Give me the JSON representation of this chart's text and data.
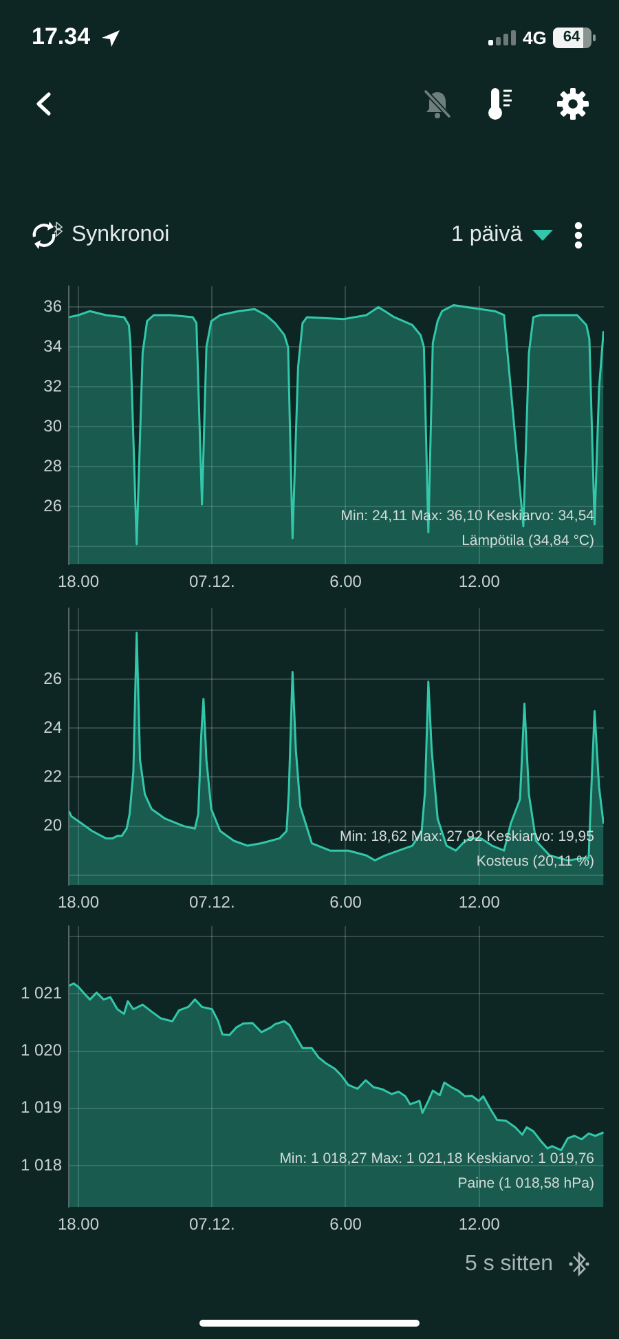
{
  "chart_data": [
    {
      "type": "other",
      "annotations": [
        "17.34",
        "4G",
        "64",
        "Synkronoi",
        "1 päivä"
      ]
    },
    {
      "type": "area",
      "color": "#33c7aa",
      "xlim": [
        "--12-06T17:34",
        "--12-07T17:36"
      ],
      "xticks": [
        {
          "value": "--12-06T18:00",
          "label": "18.00"
        },
        {
          "value": "--12-07T00:00",
          "label": "07.12."
        },
        {
          "value": "--12-07T06:00",
          "label": "6.00"
        },
        {
          "value": "--12-07T12:00",
          "label": "12.00"
        }
      ],
      "ylim": [
        23.1,
        37.05
      ],
      "yticks": [
        {
          "value": 24,
          "label": null
        },
        26,
        28,
        30,
        32,
        34,
        36
      ],
      "grid": true,
      "x": [
        "--12-06T17:35",
        "--12-06T18:00",
        "--12-06T18:31",
        "--12-06T19:14",
        "--12-06T20:03",
        "--12-06T20:16",
        "--12-06T20:20",
        "--12-06T20:37",
        "--12-06T20:53",
        "--12-06T21:05",
        "--12-06T21:23",
        "--12-06T22:07",
        "--12-06T23:08",
        "--12-06T23:18",
        "--12-06T23:33",
        "--12-06T23:45",
        "--12-06T23:58",
        "--12-07T00:22",
        "--12-07T01:11",
        "--12-07T01:55",
        "--12-07T02:25",
        "--12-07T02:50",
        "--12-07T03:15",
        "--12-07T03:25",
        "--12-07T03:37",
        "--12-07T03:52",
        "--12-07T04:04",
        "--12-07T04:16",
        "--12-07T05:55",
        "--12-07T06:56",
        "--12-07T07:28",
        "--12-07T07:46",
        "--12-07T08:11",
        "--12-07T09:00",
        "--12-07T09:22",
        "--12-07T09:31",
        "--12-07T09:43",
        "--12-07T09:55",
        "--12-07T10:08",
        "--12-07T10:20",
        "--12-07T10:51",
        "--12-07T11:28",
        "--12-07T12:42",
        "--12-07T13:07",
        "--12-07T13:59",
        "--12-07T14:14",
        "--12-07T14:26",
        "--12-07T14:45",
        "--12-07T16:24",
        "--12-07T16:49",
        "--12-07T16:57",
        "--12-07T17:11",
        "--12-07T17:23",
        "--12-07T17:35"
      ],
      "values": [
        35.5,
        35.6,
        35.8,
        35.6,
        35.5,
        35.1,
        34.2,
        24.1,
        33.7,
        35.3,
        35.6,
        35.6,
        35.5,
        35.2,
        26.1,
        34.0,
        35.3,
        35.6,
        35.8,
        35.9,
        35.6,
        35.2,
        34.6,
        34.0,
        24.4,
        33.0,
        35.2,
        35.5,
        35.4,
        35.6,
        36.0,
        35.8,
        35.5,
        35.1,
        34.6,
        34.0,
        24.7,
        34.2,
        35.3,
        35.8,
        36.1,
        36.0,
        35.8,
        35.6,
        25.0,
        33.7,
        35.5,
        35.6,
        35.6,
        35.1,
        34.4,
        25.1,
        31.9,
        34.8
      ],
      "annotations": [
        "Min: 24,11 Max: 36,10 Keskiarvo: 34,54",
        "Lämpötila (34,84 °C)"
      ]
    },
    {
      "type": "area",
      "color": "#33c7aa",
      "xlim": [
        "--12-06T17:34",
        "--12-07T17:36"
      ],
      "xticks": [
        {
          "value": "--12-06T18:00",
          "label": "18.00"
        },
        {
          "value": "--12-07T00:00",
          "label": "07.12."
        },
        {
          "value": "--12-07T06:00",
          "label": "6.00"
        },
        {
          "value": "--12-07T12:00",
          "label": "12.00"
        }
      ],
      "ylim": [
        17.6,
        28.9
      ],
      "yticks": [
        {
          "value": 18,
          "label": null
        },
        20,
        22,
        24,
        26,
        {
          "value": 28,
          "label": null
        }
      ],
      "grid": true,
      "x": [
        "--12-06T17:35",
        "--12-06T17:41",
        "--12-06T18:00",
        "--12-06T18:37",
        "--12-06T19:14",
        "--12-06T19:32",
        "--12-06T19:45",
        "--12-06T19:57",
        "--12-06T20:10",
        "--12-06T20:18",
        "--12-06T20:28",
        "--12-06T20:37",
        "--12-06T20:46",
        "--12-06T20:59",
        "--12-06T21:17",
        "--12-06T21:54",
        "--12-06T22:44",
        "--12-06T23:14",
        "--12-06T23:23",
        "--12-06T23:31",
        "--12-06T23:37",
        "--12-06T23:45",
        "--12-06T23:58",
        "--12-07T00:22",
        "--12-07T00:59",
        "--12-07T01:36",
        "--12-07T02:13",
        "--12-07T03:02",
        "--12-07T03:21",
        "--12-07T03:27",
        "--12-07T03:37",
        "--12-07T03:46",
        "--12-07T03:58",
        "--12-07T04:29",
        "--12-07T05:18",
        "--12-07T06:07",
        "--12-07T06:56",
        "--12-07T07:19",
        "--12-07T07:46",
        "--12-07T08:23",
        "--12-07T09:00",
        "--12-07T09:25",
        "--12-07T09:34",
        "--12-07T09:43",
        "--12-07T09:52",
        "--12-07T10:08",
        "--12-07T10:32",
        "--12-07T10:57",
        "--12-07T11:16",
        "--12-07T11:34",
        "--12-07T12:05",
        "--12-07T12:35",
        "--12-07T13:07",
        "--12-07T13:25",
        "--12-07T13:50",
        "--12-07T14:02",
        "--12-07T14:14",
        "--12-07T14:33",
        "--12-07T15:10",
        "--12-07T15:59",
        "--12-07T16:42",
        "--12-07T16:55",
        "--12-07T17:03",
        "--12-07T17:11",
        "--12-07T17:23",
        "--12-07T17:35"
      ],
      "values": [
        20.6,
        20.4,
        20.2,
        19.8,
        19.5,
        19.5,
        19.6,
        19.6,
        19.9,
        20.5,
        22.2,
        27.9,
        22.7,
        21.3,
        20.7,
        20.3,
        20.0,
        19.9,
        20.5,
        23.7,
        25.2,
        22.7,
        20.7,
        19.8,
        19.4,
        19.2,
        19.3,
        19.5,
        19.8,
        21.4,
        26.3,
        23.1,
        20.8,
        19.3,
        19.0,
        19.0,
        18.8,
        18.6,
        18.8,
        19.0,
        19.2,
        19.8,
        21.4,
        25.9,
        23.1,
        20.3,
        19.2,
        19.0,
        19.3,
        19.5,
        19.5,
        19.2,
        19.0,
        20.1,
        21.1,
        25.0,
        21.3,
        19.4,
        18.8,
        18.6,
        18.7,
        18.7,
        21.8,
        24.7,
        21.6,
        20.1
      ],
      "annotations": [
        "Min: 18,62 Max: 27,92 Keskiarvo: 19,95",
        "Kosteus (20,11 %)"
      ]
    },
    {
      "type": "area",
      "color": "#33c7aa",
      "xlim": [
        "--12-06T17:34",
        "--12-07T17:36"
      ],
      "xticks": [
        {
          "value": "--12-06T18:00",
          "label": "18.00"
        },
        {
          "value": "--12-07T00:00",
          "label": "07.12."
        },
        {
          "value": "--12-07T06:00",
          "label": "6.00"
        },
        {
          "value": "--12-07T12:00",
          "label": "12.00"
        }
      ],
      "ylim": [
        1017.28,
        1022.18
      ],
      "yticks": [
        {
          "value": 1018,
          "label": "1 018"
        },
        {
          "value": 1019,
          "label": "1 019"
        },
        {
          "value": 1020,
          "label": "1 020"
        },
        {
          "value": 1021,
          "label": "1 021"
        },
        {
          "value": 1022,
          "label": null
        }
      ],
      "grid": true,
      "x": [
        "--12-06T17:35",
        "--12-06T17:47",
        "--12-06T18:00",
        "--12-06T18:19",
        "--12-06T18:31",
        "--12-06T18:49",
        "--12-06T19:08",
        "--12-06T19:26",
        "--12-06T19:45",
        "--12-06T20:03",
        "--12-06T20:13",
        "--12-06T20:28",
        "--12-06T20:53",
        "--12-06T21:17",
        "--12-06T21:42",
        "--12-06T22:13",
        "--12-06T22:31",
        "--12-06T22:56",
        "--12-06T23:14",
        "--12-06T23:33",
        "--12-07T00:00",
        "--12-07T00:16",
        "--12-07T00:28",
        "--12-07T00:47",
        "--12-07T01:05",
        "--12-07T01:24",
        "--12-07T01:49",
        "--12-07T02:13",
        "--12-07T02:38",
        "--12-07T02:50",
        "--12-07T03:15",
        "--12-07T03:29",
        "--12-07T03:46",
        "--12-07T04:04",
        "--12-07T04:29",
        "--12-07T04:47",
        "--12-07T05:06",
        "--12-07T05:31",
        "--12-07T05:49",
        "--12-07T06:07",
        "--12-07T06:32",
        "--12-07T06:54",
        "--12-07T07:15",
        "--12-07T07:40",
        "--12-07T08:04",
        "--12-07T08:23",
        "--12-07T08:41",
        "--12-07T08:54",
        "--12-07T09:19",
        "--12-07T09:27",
        "--12-07T09:43",
        "--12-07T09:55",
        "--12-07T10:14",
        "--12-07T10:26",
        "--12-07T10:45",
        "--12-07T11:03",
        "--12-07T11:22",
        "--12-07T11:40",
        "--12-07T11:59",
        "--12-07T12:11",
        "--12-07T12:29",
        "--12-07T12:48",
        "--12-07T13:13",
        "--12-07T13:37",
        "--12-07T13:56",
        "--12-07T14:08",
        "--12-07T14:26",
        "--12-07T14:45",
        "--12-07T15:04",
        "--12-07T15:16",
        "--12-07T15:41",
        "--12-07T15:59",
        "--12-07T16:17",
        "--12-07T16:36",
        "--12-07T16:55",
        "--12-07T17:13",
        "--12-07T17:35"
      ],
      "values": [
        1021.14,
        1021.18,
        1021.12,
        1020.98,
        1020.9,
        1021.02,
        1020.9,
        1020.94,
        1020.73,
        1020.65,
        1020.87,
        1020.73,
        1020.81,
        1020.69,
        1020.57,
        1020.52,
        1020.71,
        1020.77,
        1020.9,
        1020.77,
        1020.73,
        1020.53,
        1020.29,
        1020.28,
        1020.41,
        1020.48,
        1020.49,
        1020.33,
        1020.41,
        1020.47,
        1020.52,
        1020.45,
        1020.25,
        1020.05,
        1020.05,
        1019.89,
        1019.79,
        1019.69,
        1019.57,
        1019.41,
        1019.34,
        1019.49,
        1019.37,
        1019.33,
        1019.25,
        1019.29,
        1019.21,
        1019.07,
        1019.13,
        1018.92,
        1019.13,
        1019.31,
        1019.23,
        1019.45,
        1019.37,
        1019.31,
        1019.21,
        1019.22,
        1019.13,
        1019.21,
        1019.0,
        1018.8,
        1018.78,
        1018.67,
        1018.54,
        1018.67,
        1018.6,
        1018.44,
        1018.3,
        1018.34,
        1018.27,
        1018.48,
        1018.52,
        1018.46,
        1018.56,
        1018.52,
        1018.58
      ],
      "annotations": [
        "Min: 1 018,27 Max: 1 021,18 Keskiarvo: 1 019,76",
        "Paine (1 018,58 hPa)"
      ]
    },
    {
      "type": "other",
      "annotations": [
        "5 s sitten"
      ]
    }
  ]
}
